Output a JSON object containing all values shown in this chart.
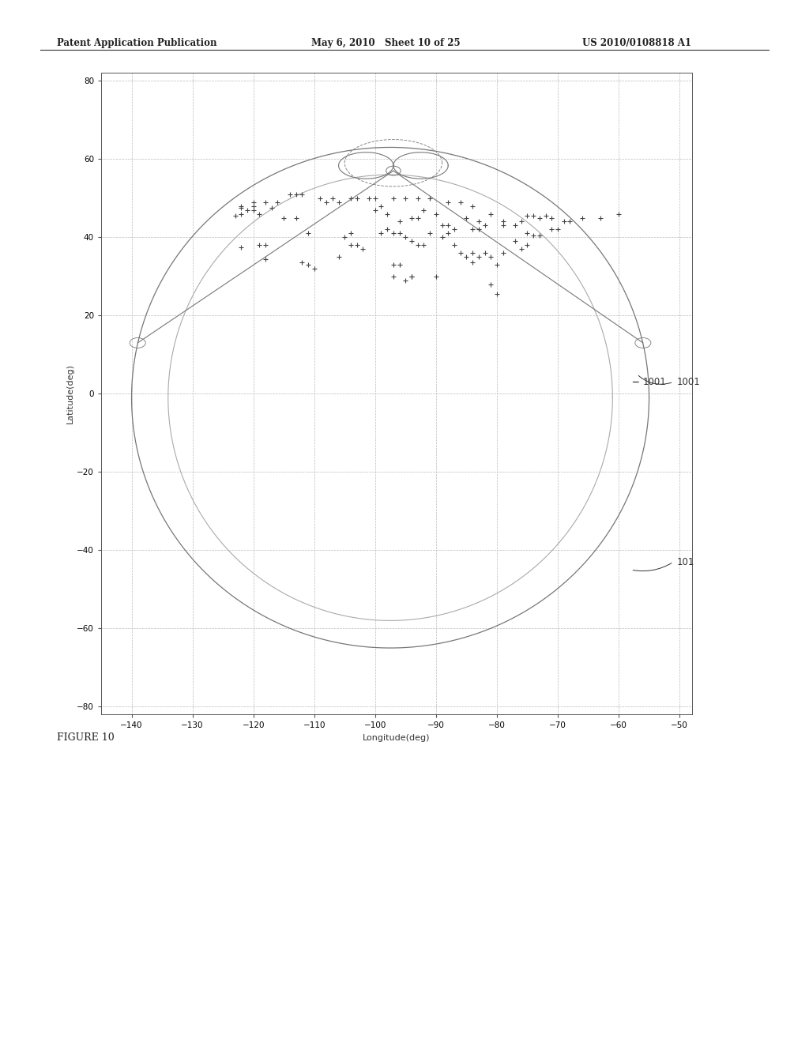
{
  "header_left": "Patent Application Publication",
  "header_mid": "May 6, 2010   Sheet 10 of 25",
  "header_right": "US 2010/0108818 A1",
  "figure_label": "FIGURE 10",
  "xlabel": "Longitude(deg)",
  "ylabel": "Latitude(deg)",
  "xlim": [
    -145,
    -48
  ],
  "ylim": [
    -82,
    82
  ],
  "xticks": [
    -140,
    -130,
    -120,
    -110,
    -100,
    -90,
    -80,
    -70,
    -60,
    -50
  ],
  "yticks": [
    -80,
    -60,
    -40,
    -20,
    0,
    20,
    40,
    60,
    80
  ],
  "label_1001": "1001",
  "label_101": "101",
  "scatter_points": [
    [
      -122,
      47.5
    ],
    [
      -121,
      47
    ],
    [
      -120,
      47
    ],
    [
      -122,
      37.5
    ],
    [
      -118,
      34.5
    ],
    [
      -123,
      45.5
    ],
    [
      -122,
      46
    ],
    [
      -119,
      46
    ],
    [
      -117,
      47.5
    ],
    [
      -122,
      48
    ],
    [
      -120,
      48
    ],
    [
      -119,
      38
    ],
    [
      -118,
      38
    ],
    [
      -112,
      33.5
    ],
    [
      -111,
      33
    ],
    [
      -106,
      35
    ],
    [
      -105,
      40
    ],
    [
      -104,
      41
    ],
    [
      -104,
      38
    ],
    [
      -103,
      38
    ],
    [
      -102,
      37
    ],
    [
      -97,
      30
    ],
    [
      -97,
      33
    ],
    [
      -96,
      33
    ],
    [
      -95,
      29
    ],
    [
      -94,
      30
    ],
    [
      -87,
      42
    ],
    [
      -88,
      43
    ],
    [
      -89,
      43
    ],
    [
      -83,
      42
    ],
    [
      -84,
      42
    ],
    [
      -80,
      33
    ],
    [
      -81,
      28
    ],
    [
      -75,
      41
    ],
    [
      -74,
      40.5
    ],
    [
      -73,
      40.5
    ],
    [
      -71,
      42
    ],
    [
      -70,
      42
    ],
    [
      -69,
      44
    ],
    [
      -98,
      46
    ],
    [
      -96,
      44
    ],
    [
      -94,
      45
    ],
    [
      -93,
      45
    ],
    [
      -92,
      47
    ],
    [
      -90,
      46
    ],
    [
      -85,
      45
    ],
    [
      -83,
      44
    ],
    [
      -82,
      43
    ],
    [
      -99,
      41
    ],
    [
      -98,
      42
    ],
    [
      -97,
      41
    ],
    [
      -96,
      41
    ],
    [
      -95,
      40
    ],
    [
      -94,
      39
    ],
    [
      -93,
      38
    ],
    [
      -92,
      38
    ],
    [
      -91,
      41
    ],
    [
      -89,
      40
    ],
    [
      -88,
      41
    ],
    [
      -87,
      38
    ],
    [
      -86,
      36
    ],
    [
      -85,
      35
    ],
    [
      -84,
      36
    ],
    [
      -83,
      35
    ],
    [
      -82,
      36
    ],
    [
      -81,
      35
    ],
    [
      -79,
      36
    ],
    [
      -77,
      39
    ],
    [
      -76,
      37
    ],
    [
      -75,
      38
    ],
    [
      -66,
      45
    ],
    [
      -63,
      45
    ],
    [
      -60,
      46
    ],
    [
      -79,
      44
    ],
    [
      -76,
      44
    ],
    [
      -73,
      45
    ],
    [
      -71,
      45
    ],
    [
      -68,
      44
    ],
    [
      -114,
      51
    ],
    [
      -113,
      51
    ],
    [
      -112,
      51
    ],
    [
      -109,
      50
    ],
    [
      -107,
      50
    ],
    [
      -104,
      50
    ],
    [
      -103,
      50
    ],
    [
      -101,
      50
    ],
    [
      -100,
      50
    ],
    [
      -75,
      45.5
    ],
    [
      -74,
      45.5
    ],
    [
      -72,
      45.5
    ],
    [
      -100,
      47
    ],
    [
      -99,
      48
    ],
    [
      -97,
      50
    ],
    [
      -95,
      50
    ],
    [
      -93,
      50
    ],
    [
      -91,
      50
    ],
    [
      -88,
      49
    ],
    [
      -86,
      49
    ],
    [
      -84,
      48
    ],
    [
      -81,
      46
    ],
    [
      -79,
      43
    ],
    [
      -77,
      43
    ],
    [
      -120,
      49
    ],
    [
      -118,
      49
    ],
    [
      -116,
      49
    ],
    [
      -108,
      49
    ],
    [
      -106,
      49
    ],
    [
      -115,
      45
    ],
    [
      -113,
      45
    ],
    [
      -111,
      41
    ],
    [
      -110,
      32
    ],
    [
      -84,
      33.5
    ],
    [
      -80,
      25.5
    ],
    [
      -90,
      30
    ],
    [
      -94,
      30
    ]
  ],
  "background_color": "#ffffff",
  "line_color_outer": "#888888",
  "line_color_inner": "#aaaaaa",
  "scatter_color": "#444444",
  "grid_color": "#bbbbbb"
}
